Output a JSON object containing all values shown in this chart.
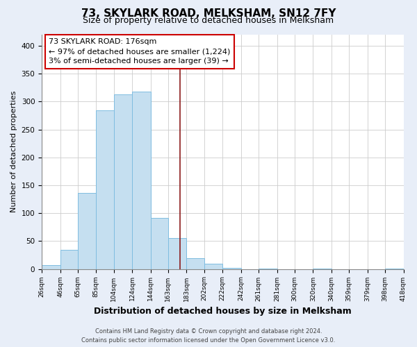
{
  "title": "73, SKYLARK ROAD, MELKSHAM, SN12 7FY",
  "subtitle": "Size of property relative to detached houses in Melksham",
  "xlabel": "Distribution of detached houses by size in Melksham",
  "ylabel": "Number of detached properties",
  "bin_edges": [
    26,
    46,
    65,
    85,
    104,
    124,
    144,
    163,
    183,
    202,
    222,
    242,
    261,
    281,
    300,
    320,
    340,
    359,
    379,
    398,
    418
  ],
  "bin_heights": [
    7,
    34,
    136,
    284,
    313,
    318,
    92,
    55,
    19,
    10,
    2,
    0,
    1,
    0,
    0,
    1,
    0,
    0,
    0,
    1
  ],
  "bar_color": "#c5dff0",
  "bar_edge_color": "#7fbde0",
  "property_line_x": 176,
  "property_line_color": "#8b1a1a",
  "annotation_line1": "73 SKYLARK ROAD: 176sqm",
  "annotation_line2": "← 97% of detached houses are smaller (1,224)",
  "annotation_line3": "3% of semi-detached houses are larger (39) →",
  "ylim": [
    0,
    420
  ],
  "yticks": [
    0,
    50,
    100,
    150,
    200,
    250,
    300,
    350,
    400
  ],
  "tick_labels": [
    "26sqm",
    "46sqm",
    "65sqm",
    "85sqm",
    "104sqm",
    "124sqm",
    "144sqm",
    "163sqm",
    "183sqm",
    "202sqm",
    "222sqm",
    "242sqm",
    "261sqm",
    "281sqm",
    "300sqm",
    "320sqm",
    "340sqm",
    "359sqm",
    "379sqm",
    "398sqm",
    "418sqm"
  ],
  "footer_line1": "Contains HM Land Registry data © Crown copyright and database right 2024.",
  "footer_line2": "Contains public sector information licensed under the Open Government Licence v3.0.",
  "background_color": "#e8eef8",
  "plot_background_color": "#ffffff",
  "grid_color": "#cccccc",
  "title_fontsize": 11,
  "subtitle_fontsize": 9,
  "ylabel_fontsize": 8,
  "xlabel_fontsize": 9,
  "tick_fontsize": 6.5,
  "annotation_fontsize": 8,
  "footer_fontsize": 6
}
